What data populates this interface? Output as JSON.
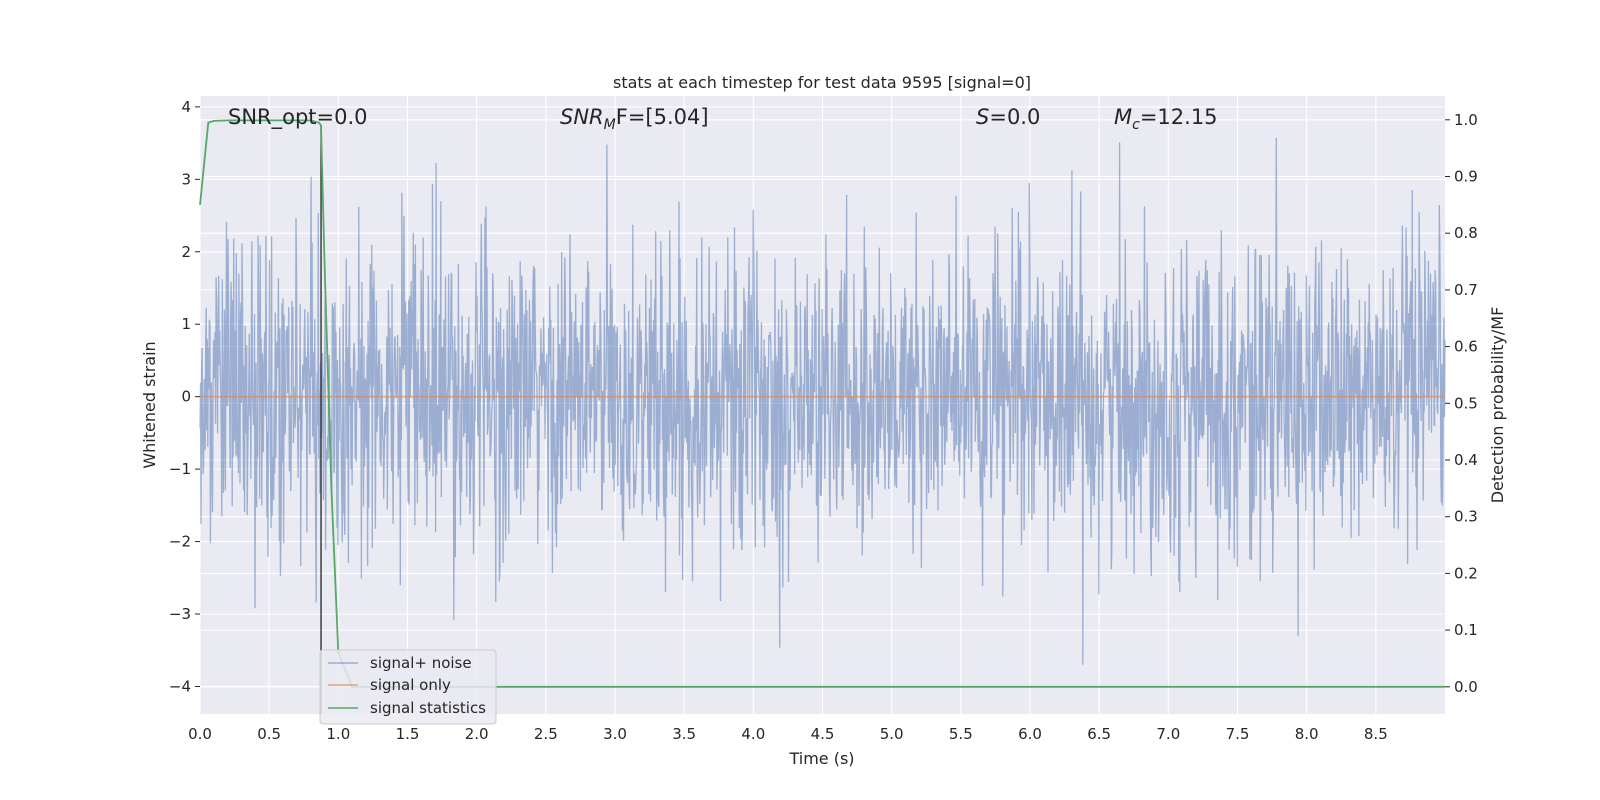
{
  "chart_data": {
    "type": "line",
    "title": "stats at each timestep for test data 9595 [signal=0]",
    "xlabel": "Time (s)",
    "ylabel": "Whitened strain",
    "y2label": "Detection probability/MF",
    "xlim": [
      0.0,
      9.0
    ],
    "ylim": [
      -4.38,
      4.15
    ],
    "y2lim": [
      -0.048,
      1.042
    ],
    "xticks": [
      "0.0",
      "0.5",
      "1.0",
      "1.5",
      "2.0",
      "2.5",
      "3.0",
      "3.5",
      "4.0",
      "4.5",
      "5.0",
      "5.5",
      "6.0",
      "6.5",
      "7.0",
      "7.5",
      "8.0",
      "8.5"
    ],
    "yticks": [
      "4",
      "3",
      "2",
      "1",
      "0",
      "−1",
      "−2",
      "−3",
      "−4"
    ],
    "y2ticks": [
      "1.0",
      "0.9",
      "0.8",
      "0.7",
      "0.6",
      "0.5",
      "0.4",
      "0.3",
      "0.2",
      "0.1",
      "0.0"
    ],
    "grid": true,
    "legend_position": "lower-left",
    "annotations": {
      "snr_opt": "SNR_opt=0.0",
      "snr_mf_prefix": "SNR",
      "snr_mf_sub": "M",
      "snr_mf_suffix": "F=[5.04]",
      "s_name": "S",
      "s_value": "=0.0",
      "mc_name": "M",
      "mc_sub": "c",
      "mc_value": "=12.15"
    },
    "marker_line_x": 0.875,
    "series": [
      {
        "name": "signal+ noise",
        "color": "#4c72b0",
        "description": "dense whitened noise",
        "approx_amplitude": [
          -3.7,
          3.75
        ]
      },
      {
        "name": "signal only",
        "color": "#dd8452",
        "x": [
          0.0,
          9.0
        ],
        "y": [
          0.0,
          0.0
        ]
      },
      {
        "name": "signal statistics",
        "color": "#55a868",
        "axis": "right",
        "x": [
          0.0,
          0.06,
          0.1,
          0.2,
          0.3,
          0.5,
          0.7,
          0.8,
          0.86,
          0.875,
          0.9,
          0.95,
          1.0,
          1.1,
          2.0,
          3.0,
          4.0,
          5.0,
          6.0,
          7.0,
          8.0,
          9.0
        ],
        "y": [
          0.85,
          0.995,
          0.998,
          0.999,
          0.999,
          0.999,
          0.999,
          0.999,
          0.995,
          0.99,
          0.75,
          0.35,
          0.06,
          0.0,
          0.0,
          0.0,
          0.0,
          0.0,
          0.0,
          0.0,
          0.0,
          0.0
        ]
      }
    ]
  },
  "colors": {
    "plot_bg": "#eaeaf2",
    "grid": "#ffffff",
    "noise": "#4c72b0",
    "signal": "#dd8452",
    "stats": "#55a868",
    "marker_line": "#333333"
  }
}
